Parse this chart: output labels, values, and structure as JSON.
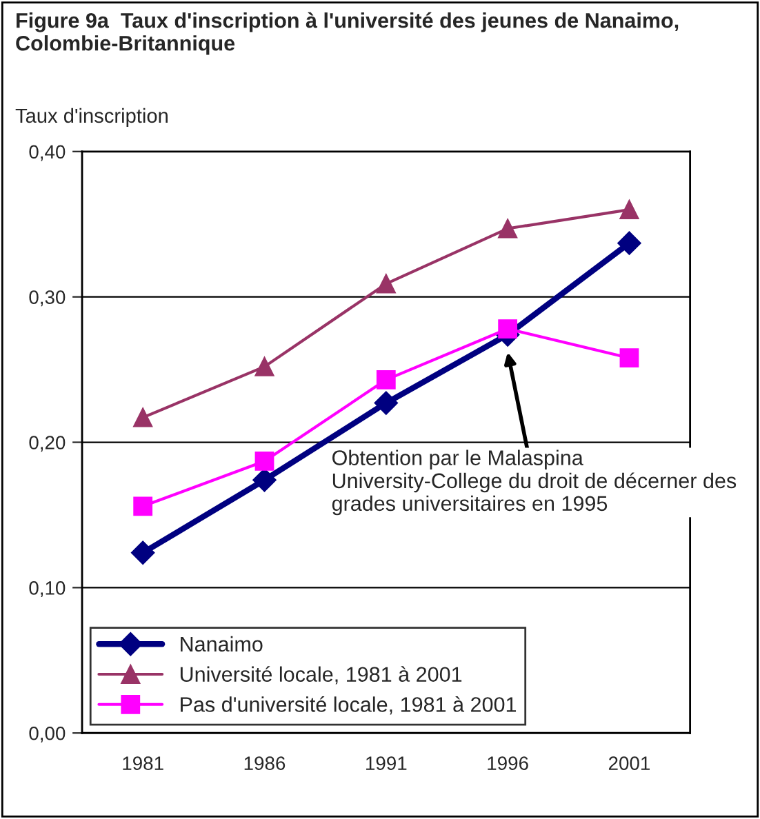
{
  "chart_data": {
    "type": "line",
    "title": "Figure 9a  Taux d'inscription à l'université des jeunes de Nanaimo, Colombie-Britannique",
    "ylabel": "Taux d'inscription",
    "categories": [
      "1981",
      "1986",
      "1991",
      "1996",
      "2001"
    ],
    "series": [
      {
        "name": "Nanaimo",
        "color": "#000080",
        "marker": "diamond",
        "values": [
          0.124,
          0.174,
          0.227,
          0.274,
          0.337
        ]
      },
      {
        "name": "Université locale, 1981 à 2001",
        "color": "#993366",
        "marker": "triangle",
        "values": [
          0.217,
          0.252,
          0.309,
          0.347,
          0.36
        ]
      },
      {
        "name": "Pas d'université locale, 1981 à 2001",
        "color": "#ff00ff",
        "marker": "square",
        "values": [
          0.156,
          0.187,
          0.243,
          0.278,
          0.258
        ]
      }
    ],
    "ylim": [
      0,
      0.4
    ],
    "yticks": [
      {
        "value": 0,
        "label": "0,00"
      },
      {
        "value": 0.1,
        "label": "0,10"
      },
      {
        "value": 0.2,
        "label": "0,20"
      },
      {
        "value": 0.3,
        "label": "0,30"
      },
      {
        "value": 0.4,
        "label": "0,40"
      }
    ],
    "grid": "y",
    "legend": "bottom left",
    "line_style": "solid",
    "annotations": [
      {
        "text": "Obtention par le Malaspina University-College du droit de décerner des grades universitaires en 1995",
        "x": "1996",
        "y": 0.262
      }
    ]
  }
}
